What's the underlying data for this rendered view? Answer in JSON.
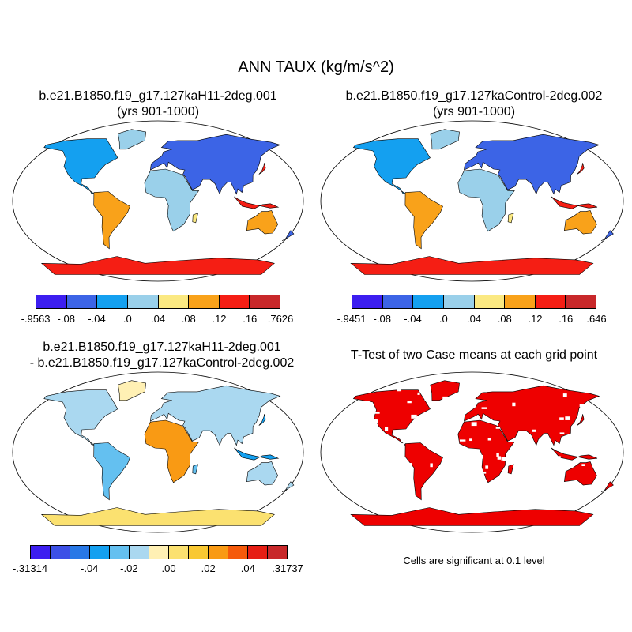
{
  "title": "ANN TAUX (kg/m/s^2)",
  "panels": [
    {
      "title_line1": "b.e21.B1850.f19_g17.127kaH11-2deg.001",
      "title_line2": "(yrs 901-1000)",
      "colorbar": {
        "colors": [
          "#3c1ef0",
          "#3c64e6",
          "#14a0f0",
          "#9ad0ea",
          "#fbe982",
          "#f9a21a",
          "#f51e14",
          "#c8282a"
        ],
        "labels": [
          "-.9563",
          "-.08",
          "-.04",
          ".0",
          ".04",
          ".08",
          ".12",
          ".16",
          ".7626"
        ]
      }
    },
    {
      "title_line1": "b.e21.B1850.f19_g17.127kaControl-2deg.002",
      "title_line2": "(yrs 901-1000)",
      "colorbar": {
        "colors": [
          "#3c1ef0",
          "#3c64e6",
          "#14a0f0",
          "#9ad0ea",
          "#fbe982",
          "#f9a21a",
          "#f51e14",
          "#c8282a"
        ],
        "labels": [
          "-.9451",
          "-.08",
          "-.04",
          ".0",
          ".04",
          ".08",
          ".12",
          ".16",
          ".646"
        ]
      }
    },
    {
      "title_line1": "b.e21.B1850.f19_g17.127kaH11-2deg.001",
      "title_line2": "- b.e21.B1850.f19_g17.127kaControl-2deg.002",
      "colorbar": {
        "colors": [
          "#3c1ef0",
          "#3c50e6",
          "#2878e6",
          "#14a0f0",
          "#64c0f0",
          "#aad8f0",
          "#fff0b4",
          "#fbe170",
          "#f9c832",
          "#f99a14",
          "#f55a0a",
          "#e61e14",
          "#c8282a"
        ],
        "labels": [
          "-.31314",
          "-.04",
          "-.02",
          ".00",
          ".02",
          ".04",
          ".31737"
        ]
      }
    },
    {
      "title_line1": "T-Test of two Case means at each grid point",
      "title_line2": "",
      "fill_color": "#ee0000"
    }
  ],
  "note": "Cells are significant at 0.1 level"
}
